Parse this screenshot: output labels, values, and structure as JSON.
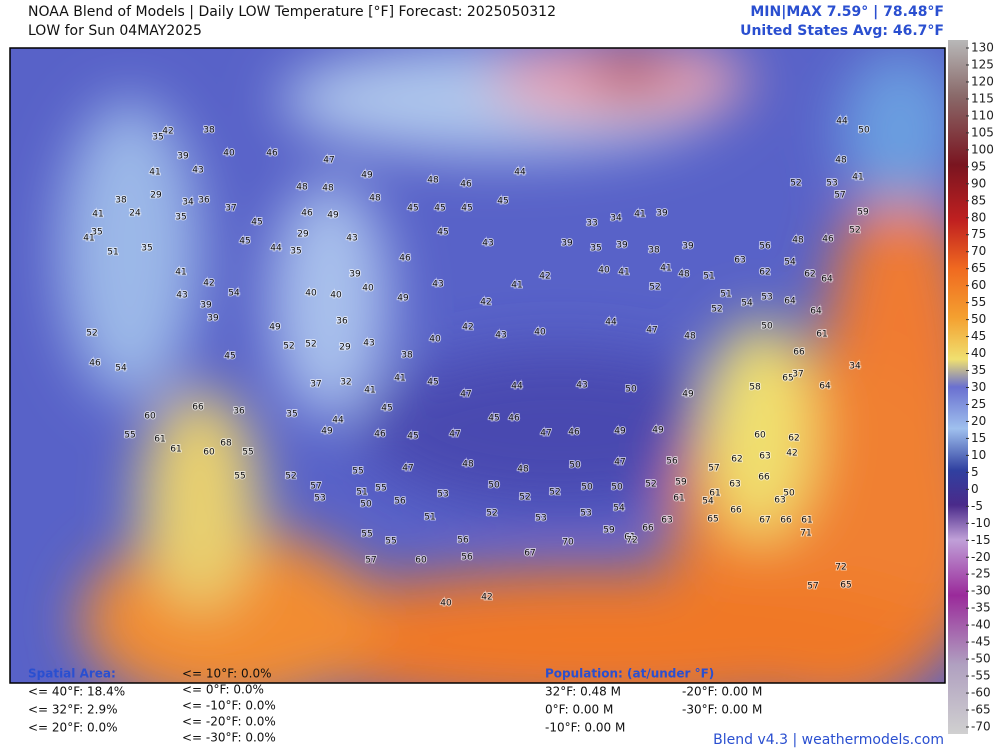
{
  "header": {
    "title": "NOAA Blend of Models | Daily LOW Temperature [°F] Forecast: 2025050312",
    "subtitle": "LOW for Sun 04MAY2025",
    "minmax": "MIN|MAX 7.59° | 78.48°F",
    "average": "United States Avg: 46.7°F"
  },
  "colorbar": {
    "ticks": [
      130,
      125,
      120,
      115,
      110,
      105,
      100,
      95,
      90,
      85,
      80,
      75,
      70,
      65,
      60,
      55,
      50,
      45,
      40,
      35,
      30,
      25,
      20,
      15,
      10,
      5,
      0,
      -5,
      -10,
      -15,
      -20,
      -25,
      -30,
      -35,
      -40,
      -45,
      -50,
      -55,
      -60,
      -65,
      -70
    ]
  },
  "stations": [
    38,
    42,
    35,
    39,
    40,
    46,
    47,
    49,
    48,
    46,
    44,
    43,
    41,
    29,
    34,
    36,
    37,
    38,
    24,
    35,
    41,
    48,
    48,
    48,
    45,
    45,
    45,
    45,
    35,
    41,
    35,
    45,
    46,
    49,
    43,
    45,
    44,
    29,
    35,
    46,
    45,
    43,
    51,
    41,
    42,
    54,
    43,
    39,
    39,
    39,
    40,
    40,
    40,
    49,
    43,
    42,
    41,
    42,
    52,
    46,
    54,
    45,
    49,
    52,
    52,
    36,
    29,
    43,
    38,
    40,
    42,
    43,
    40,
    44,
    47,
    48,
    52,
    37,
    32,
    41,
    41,
    45,
    47,
    44,
    43,
    50,
    49,
    58,
    65,
    64,
    60,
    66,
    36,
    35,
    44,
    45,
    45,
    47,
    45,
    46,
    47,
    46,
    49,
    49,
    60,
    62,
    55,
    61,
    61,
    60,
    68,
    55,
    55,
    49,
    46,
    47,
    48,
    48,
    50,
    47,
    56,
    57,
    62,
    63,
    42,
    52,
    57,
    53,
    55,
    51,
    55,
    56,
    50,
    53,
    50,
    52,
    52,
    50,
    50,
    52,
    59,
    61,
    63,
    66,
    50,
    51,
    52,
    53,
    53,
    54,
    61,
    54,
    55,
    55,
    56,
    59,
    61,
    66,
    63,
    65,
    66,
    67,
    66,
    61,
    63,
    57,
    60,
    56,
    67,
    70,
    72,
    71,
    72,
    57,
    65,
    40,
    42,
    44,
    50,
    48,
    41,
    53,
    52,
    57,
    59,
    52,
    46,
    48,
    56,
    63,
    62,
    54,
    62,
    64,
    64,
    64,
    61,
    66,
    37,
    34,
    33,
    34,
    41,
    39,
    39,
    35,
    39,
    38,
    39,
    40,
    41,
    41,
    48,
    52,
    51,
    51,
    54,
    53,
    50
  ],
  "spatial_area": {
    "title": "Spatial Area:",
    "items": [
      "<= 40°F: 18.4%",
      "<= 32°F: 2.9%",
      "<= 20°F: 0.0%",
      "<= 10°F: 0.0%",
      "<= 0°F: 0.0%",
      "<= -10°F: 0.0%",
      "<= -20°F: 0.0%",
      "<= -30°F: 0.0%"
    ]
  },
  "population": {
    "title": "Population: (at/under °F)",
    "items": [
      "32°F: 0.48 M",
      "0°F: 0.00 M",
      "-10°F: 0.00 M",
      "-20°F: 0.00 M",
      "-30°F: 0.00 M"
    ]
  },
  "footer": "Blend v4.3 | weathermodels.com"
}
